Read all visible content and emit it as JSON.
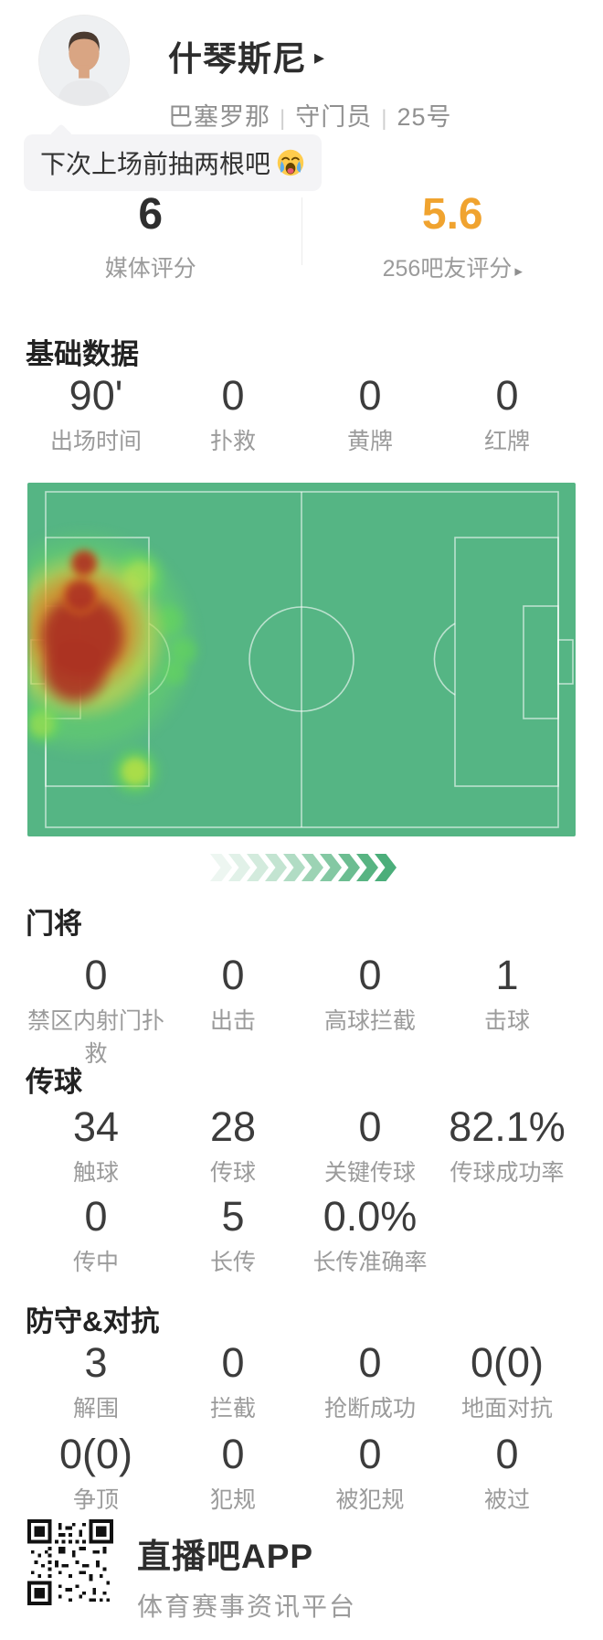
{
  "header": {
    "name": "什琴斯尼",
    "name_arrow": "▸",
    "team": "巴塞罗那",
    "position": "守门员",
    "number": "25号",
    "separator": "|"
  },
  "comment": {
    "text": "下次上场前抽两根吧",
    "emoji_name": "loudly-crying-face"
  },
  "ratings": {
    "media_value": "6",
    "media_label": "媒体评分",
    "fans_value": "5.6",
    "fans_label": "256吧友评分",
    "fans_arrow": "▸",
    "fans_color": "#f0a32f"
  },
  "basic": {
    "title": "基础数据",
    "stats": [
      {
        "value": "90'",
        "label": "出场时间"
      },
      {
        "value": "0",
        "label": "扑救"
      },
      {
        "value": "0",
        "label": "黄牌"
      },
      {
        "value": "0",
        "label": "红牌"
      }
    ]
  },
  "heatmap": {
    "pitch_color": "#55b584",
    "hot_zone": "left-penalty-area"
  },
  "goalkeeper": {
    "title": "门将",
    "stats": [
      {
        "value": "0",
        "label": "禁区内射门扑救"
      },
      {
        "value": "0",
        "label": "出击"
      },
      {
        "value": "0",
        "label": "高球拦截"
      },
      {
        "value": "1",
        "label": "击球"
      }
    ]
  },
  "passing": {
    "title": "传球",
    "rows": [
      [
        {
          "value": "34",
          "label": "触球"
        },
        {
          "value": "28",
          "label": "传球"
        },
        {
          "value": "0",
          "label": "关键传球"
        },
        {
          "value": "82.1%",
          "label": "传球成功率"
        }
      ],
      [
        {
          "value": "0",
          "label": "传中"
        },
        {
          "value": "5",
          "label": "长传"
        },
        {
          "value": "0.0%",
          "label": "长传准确率"
        }
      ]
    ]
  },
  "defense": {
    "title": "防守&对抗",
    "rows": [
      [
        {
          "value": "3",
          "label": "解围"
        },
        {
          "value": "0",
          "label": "拦截"
        },
        {
          "value": "0",
          "label": "抢断成功"
        },
        {
          "value": "0(0)",
          "label": "地面对抗"
        }
      ],
      [
        {
          "value": "0(0)",
          "label": "争顶"
        },
        {
          "value": "0",
          "label": "犯规"
        },
        {
          "value": "0",
          "label": "被犯规"
        },
        {
          "value": "0",
          "label": "被过"
        }
      ]
    ]
  },
  "footer": {
    "app_name": "直播吧APP",
    "tagline": "体育赛事资讯平台"
  },
  "chevron_colors": [
    "#edf6f1",
    "#e1f1e8",
    "#d3ebdd",
    "#c3e4d1",
    "#b1dcc4",
    "#9cd3b4",
    "#84c8a3",
    "#6cbd91",
    "#58b482",
    "#4bae7a"
  ]
}
